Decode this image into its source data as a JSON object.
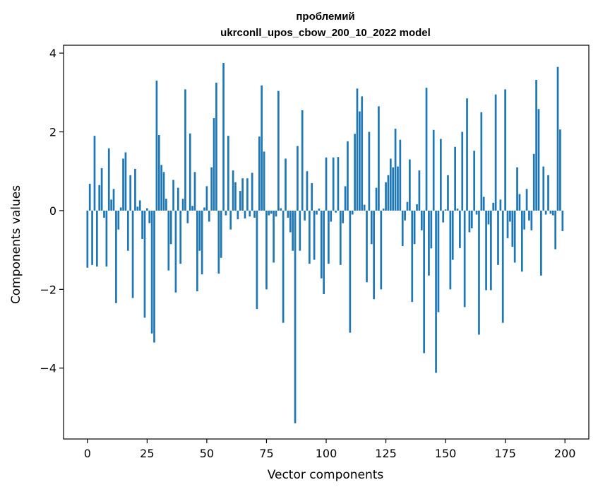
{
  "chart_data": {
    "type": "bar",
    "title_line1": "проблемий",
    "title_line2": "ukrconll_upos_cbow_200_10_2022 model",
    "xlabel": "Vector components",
    "ylabel": "Components values",
    "xlim": [
      -10,
      210
    ],
    "ylim": [
      -5.8,
      4.2
    ],
    "xticks": [
      0,
      25,
      50,
      75,
      100,
      125,
      150,
      175,
      200
    ],
    "xtick_labels": [
      "0",
      "25",
      "50",
      "75",
      "100",
      "125",
      "150",
      "175",
      "200"
    ],
    "yticks": [
      -4,
      -2,
      0,
      2,
      4
    ],
    "ytick_labels": [
      "−4",
      "−2",
      "0",
      "2",
      "4"
    ],
    "color": "#1f77b4",
    "values": [
      -1.45,
      0.68,
      -1.38,
      1.9,
      -1.42,
      0.65,
      1.08,
      -0.18,
      -1.42,
      1.58,
      0.28,
      0.55,
      -2.35,
      -0.48,
      0.08,
      1.32,
      1.48,
      -1.02,
      0.9,
      -2.22,
      1.06,
      0.1,
      0.26,
      -0.72,
      -2.72,
      0.06,
      -0.32,
      -3.12,
      -3.35,
      3.3,
      1.92,
      1.16,
      0.98,
      0.3,
      -1.52,
      -0.85,
      0.78,
      -2.08,
      0.58,
      -1.35,
      0.3,
      3.08,
      -0.32,
      1.96,
      0.12,
      0.98,
      -2.05,
      -1.02,
      -1.62,
      0.08,
      0.62,
      -0.28,
      1.1,
      2.35,
      3.25,
      -1.6,
      -1.2,
      3.75,
      -0.12,
      1.9,
      -0.48,
      1.02,
      0.72,
      -0.22,
      0.5,
      0.82,
      -0.2,
      0.82,
      -0.15,
      0.96,
      -0.18,
      -2.5,
      1.88,
      3.18,
      1.5,
      -2.0,
      -0.12,
      -0.08,
      -1.32,
      -0.15,
      3.04,
      0.06,
      -2.85,
      1.32,
      -0.18,
      -0.55,
      -1.02,
      -5.4,
      1.64,
      -1.02,
      2.55,
      -0.25,
      1.0,
      -1.35,
      0.7,
      -1.25,
      -0.1,
      0.05,
      -1.72,
      -2.12,
      1.35,
      -1.35,
      -0.28,
      1.35,
      -0.05,
      1.36,
      -1.38,
      -0.32,
      0.62,
      1.76,
      -3.1,
      -0.1,
      1.95,
      3.1,
      2.52,
      2.9,
      0.15,
      -1.82,
      2.0,
      -0.85,
      -2.25,
      0.58,
      2.65,
      -2.0,
      0.05,
      0.72,
      0.9,
      1.32,
      1.1,
      2.08,
      1.12,
      1.8,
      -0.9,
      -0.25,
      0.22,
      1.3,
      -2.32,
      -0.85,
      0.16,
      1.02,
      -0.5,
      -3.62,
      3.12,
      -1.65,
      -0.96,
      2.05,
      -4.12,
      -2.58,
      1.82,
      -0.3,
      0.03,
      0.9,
      -2.0,
      -1.25,
      1.62,
      0.05,
      -0.95,
      2.0,
      -2.45,
      2.85,
      -0.55,
      -0.45,
      1.52,
      -0.1,
      -3.15,
      2.5,
      0.35,
      -2.02,
      -0.35,
      -2.02,
      0.2,
      2.95,
      -1.38,
      0.28,
      -2.85,
      3.08,
      -0.7,
      -0.28,
      -0.92,
      -1.32,
      1.1,
      0.42,
      -1.55,
      -0.48,
      0.55,
      -0.25,
      -0.5,
      1.44,
      3.32,
      2.58,
      -1.65,
      1.12,
      -0.1,
      0.9,
      -0.08,
      -0.12,
      -0.98,
      3.65,
      2.06,
      -0.52
    ]
  }
}
